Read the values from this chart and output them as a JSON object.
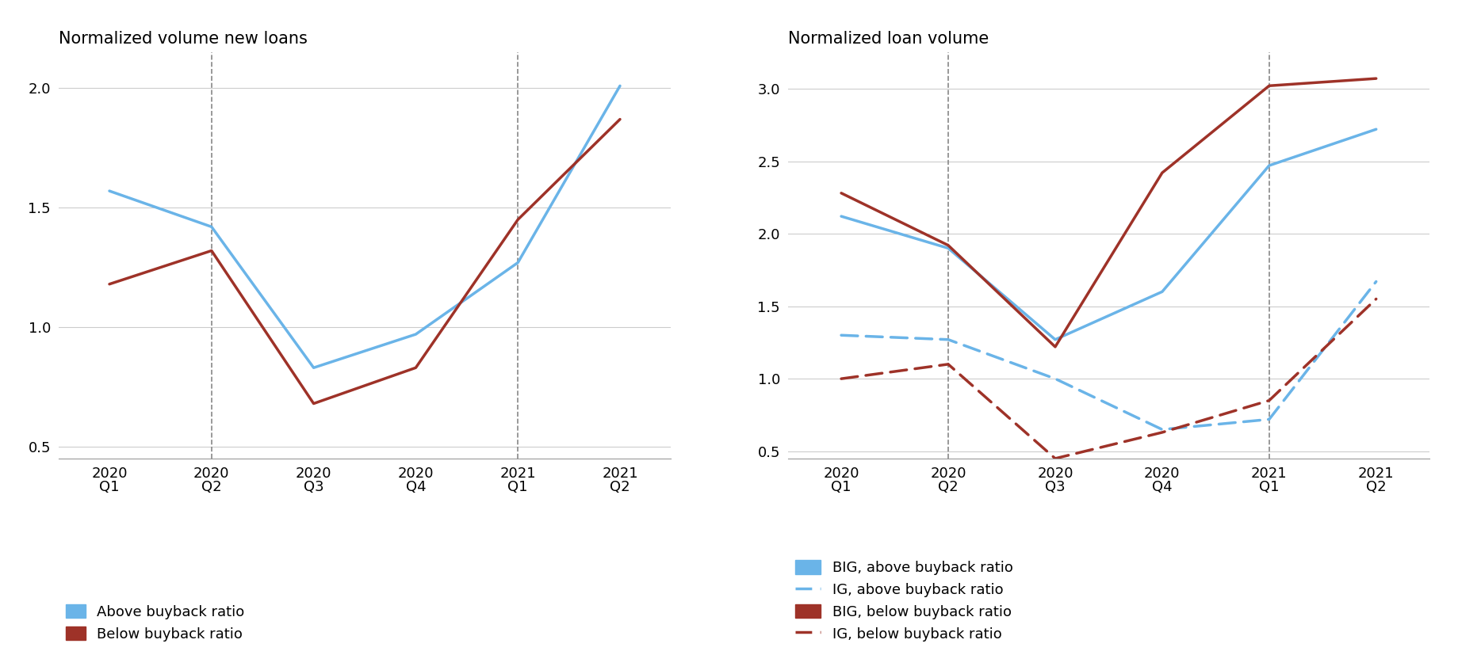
{
  "left_chart": {
    "title": "Normalized volume new loans",
    "x_labels": [
      "2020\nQ1",
      "2020\nQ2",
      "2020\nQ3",
      "2020\nQ4",
      "2021\nQ1",
      "2021\nQ2"
    ],
    "above_buyback": [
      1.57,
      1.42,
      0.83,
      0.97,
      1.27,
      2.01
    ],
    "below_buyback": [
      1.18,
      1.32,
      0.68,
      0.83,
      1.45,
      1.87
    ],
    "ylim": [
      0.45,
      2.15
    ],
    "yticks": [
      0.5,
      1.0,
      1.5,
      2.0
    ],
    "vlines": [
      1,
      4
    ],
    "blue_color": "#6ab4e8",
    "red_color": "#9e3228"
  },
  "right_chart": {
    "title": "Normalized loan volume",
    "x_labels": [
      "2020\nQ1",
      "2020\nQ2",
      "2020\nQ3",
      "2020\nQ4",
      "2021\nQ1",
      "2021\nQ2"
    ],
    "BIG_above": [
      2.12,
      1.9,
      1.27,
      1.6,
      2.47,
      2.72
    ],
    "IG_above": [
      1.3,
      1.27,
      1.0,
      0.65,
      0.72,
      1.67
    ],
    "BIG_below": [
      2.28,
      1.92,
      1.22,
      2.42,
      3.02,
      3.07
    ],
    "IG_below": [
      1.0,
      1.1,
      0.45,
      0.63,
      0.85,
      1.55
    ],
    "ylim": [
      0.45,
      3.25
    ],
    "yticks": [
      0.5,
      1.0,
      1.5,
      2.0,
      2.5,
      3.0
    ],
    "vlines": [
      1,
      4
    ],
    "blue_color": "#6ab4e8",
    "red_color": "#9e3228"
  },
  "legend_left": [
    {
      "label": "Above buyback ratio",
      "color": "#6ab4e8",
      "linestyle": "solid"
    },
    {
      "label": "Below buyback ratio",
      "color": "#9e3228",
      "linestyle": "solid"
    }
  ],
  "legend_right": [
    {
      "label": "BIG, above buyback ratio",
      "color": "#6ab4e8",
      "linestyle": "solid"
    },
    {
      "label": "IG, above buyback ratio",
      "color": "#6ab4e8",
      "linestyle": "dashed"
    },
    {
      "label": "BIG, below buyback ratio",
      "color": "#9e3228",
      "linestyle": "solid"
    },
    {
      "label": "IG, below buyback ratio",
      "color": "#9e3228",
      "linestyle": "dashed"
    }
  ],
  "linewidth": 2.5,
  "fontsize_title": 15,
  "fontsize_ticks": 13,
  "fontsize_legend": 13,
  "background_color": "#ffffff",
  "grid_color": "#cccccc",
  "vline_color": "#888888"
}
